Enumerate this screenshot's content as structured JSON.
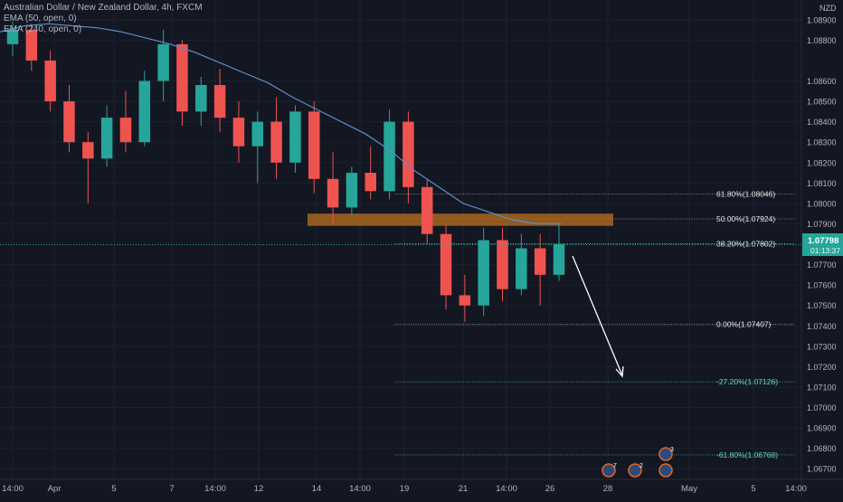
{
  "header": {
    "symbol_line": "Australian Dollar / New Zealand Dollar, 4h, FXCM",
    "indicator1": "EMA (50, open, 0)",
    "indicator2": "EMA (240, open, 0)",
    "currency": "NZD"
  },
  "price_axis": {
    "ticks": [
      "1.08900",
      "1.08800",
      "1.08600",
      "1.08500",
      "1.08400",
      "1.08300",
      "1.08200",
      "1.08100",
      "1.08000",
      "1.07900",
      "1.07700",
      "1.07600",
      "1.07500",
      "1.07400",
      "1.07300",
      "1.07200",
      "1.07100",
      "1.07000",
      "1.06900",
      "1.06800",
      "1.06700"
    ],
    "current_price": "1.07798",
    "countdown": "01:13:37"
  },
  "time_axis": {
    "labels": [
      "14:00",
      "Apr",
      "5",
      "7",
      "14:00",
      "12",
      "14",
      "14:00",
      "19",
      "21",
      "14:00",
      "26",
      "28",
      "May",
      "5",
      "14:00"
    ]
  },
  "fib_levels": [
    {
      "label": "61.80%(1.08046)",
      "price": 1.08046
    },
    {
      "label": "50.00%(1.07924)",
      "price": 1.07924
    },
    {
      "label": "38.20%(1.07802)",
      "price": 1.07802
    },
    {
      "label": "0.00%(1.07407)",
      "price": 1.07407
    },
    {
      "label": "-27.20%(1.07126)",
      "price": 1.07126
    },
    {
      "label": "-61.80%(1.06768)",
      "price": 1.06768
    }
  ],
  "event_badges": [
    "7",
    "2",
    "3"
  ],
  "chart_data": {
    "type": "candlestick",
    "symbol": "AUDNZD",
    "timeframe": "4h",
    "ylim": [
      1.0667,
      1.0897
    ],
    "resistance_zone": {
      "from": 1.0789,
      "to": 1.0795
    },
    "ema50": [
      1.0884,
      1.0887,
      1.0888,
      1.0887,
      1.0886,
      1.0884,
      1.0881,
      1.0878,
      1.0874,
      1.0869,
      1.0864,
      1.0859,
      1.0852,
      1.0846,
      1.084,
      1.0834,
      1.0826,
      1.0816,
      1.0808,
      1.08,
      1.0796,
      1.0792,
      1.079,
      1.079
    ],
    "candles": [
      {
        "o": 1.0878,
        "h": 1.0889,
        "l": 1.0872,
        "c": 1.0885
      },
      {
        "o": 1.0885,
        "h": 1.0888,
        "l": 1.0865,
        "c": 1.087
      },
      {
        "o": 1.087,
        "h": 1.0875,
        "l": 1.0845,
        "c": 1.085
      },
      {
        "o": 1.085,
        "h": 1.0858,
        "l": 1.0825,
        "c": 1.083
      },
      {
        "o": 1.083,
        "h": 1.0835,
        "l": 1.08,
        "c": 1.0822
      },
      {
        "o": 1.0822,
        "h": 1.0848,
        "l": 1.0818,
        "c": 1.0842
      },
      {
        "o": 1.0842,
        "h": 1.0855,
        "l": 1.0825,
        "c": 1.083
      },
      {
        "o": 1.083,
        "h": 1.0865,
        "l": 1.0828,
        "c": 1.086
      },
      {
        "o": 1.086,
        "h": 1.0885,
        "l": 1.085,
        "c": 1.0878
      },
      {
        "o": 1.0878,
        "h": 1.088,
        "l": 1.0838,
        "c": 1.0845
      },
      {
        "o": 1.0845,
        "h": 1.0862,
        "l": 1.0838,
        "c": 1.0858
      },
      {
        "o": 1.0858,
        "h": 1.0866,
        "l": 1.0835,
        "c": 1.0842
      },
      {
        "o": 1.0842,
        "h": 1.085,
        "l": 1.082,
        "c": 1.0828
      },
      {
        "o": 1.0828,
        "h": 1.0845,
        "l": 1.081,
        "c": 1.084
      },
      {
        "o": 1.084,
        "h": 1.0852,
        "l": 1.0812,
        "c": 1.082
      },
      {
        "o": 1.082,
        "h": 1.0848,
        "l": 1.0815,
        "c": 1.0845
      },
      {
        "o": 1.0845,
        "h": 1.085,
        "l": 1.0805,
        "c": 1.0812
      },
      {
        "o": 1.0812,
        "h": 1.0825,
        "l": 1.079,
        "c": 1.0798
      },
      {
        "o": 1.0798,
        "h": 1.0818,
        "l": 1.0794,
        "c": 1.0815
      },
      {
        "o": 1.0815,
        "h": 1.0828,
        "l": 1.0802,
        "c": 1.0806
      },
      {
        "o": 1.0806,
        "h": 1.0846,
        "l": 1.0802,
        "c": 1.084
      },
      {
        "o": 1.084,
        "h": 1.0845,
        "l": 1.08,
        "c": 1.0808
      },
      {
        "o": 1.0808,
        "h": 1.0812,
        "l": 1.078,
        "c": 1.0785
      },
      {
        "o": 1.0785,
        "h": 1.079,
        "l": 1.0748,
        "c": 1.0755
      },
      {
        "o": 1.0755,
        "h": 1.0765,
        "l": 1.0742,
        "c": 1.075
      },
      {
        "o": 1.075,
        "h": 1.0788,
        "l": 1.0745,
        "c": 1.0782
      },
      {
        "o": 1.0782,
        "h": 1.0788,
        "l": 1.0752,
        "c": 1.0758
      },
      {
        "o": 1.0758,
        "h": 1.0785,
        "l": 1.0755,
        "c": 1.0778
      },
      {
        "o": 1.0778,
        "h": 1.0785,
        "l": 1.075,
        "c": 1.0765
      },
      {
        "o": 1.0765,
        "h": 1.079,
        "l": 1.0762,
        "c": 1.078
      }
    ]
  }
}
